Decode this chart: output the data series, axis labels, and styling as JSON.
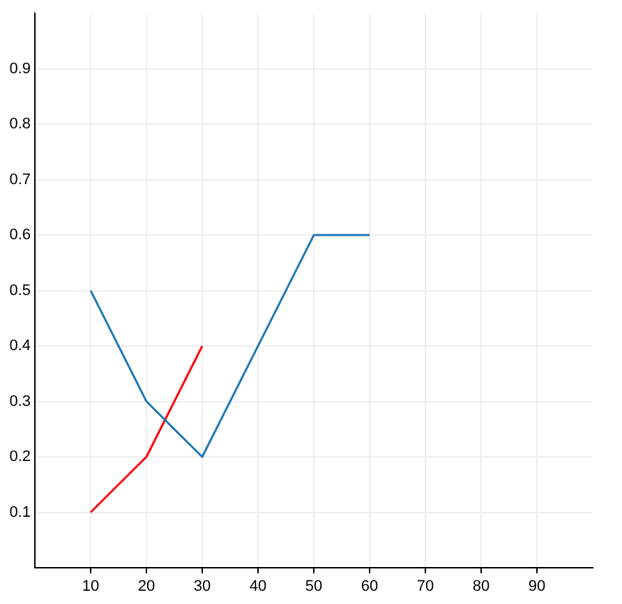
{
  "chart_data": {
    "type": "line",
    "x": [
      10,
      20,
      30,
      40,
      50,
      60
    ],
    "series": [
      {
        "color": "#1f77b4",
        "values": [
          0.5,
          0.3,
          0.2,
          0.4,
          0.6,
          0.6
        ]
      },
      {
        "color": "#ff0000",
        "x": [
          10,
          20,
          30
        ],
        "values": [
          0.1,
          0.2,
          0.4
        ]
      }
    ],
    "xlim": [
      0,
      100
    ],
    "ylim": [
      0,
      1
    ],
    "xticks": [
      10,
      20,
      30,
      40,
      50,
      60,
      70,
      80,
      90
    ],
    "yticks": [
      0.1,
      0.2,
      0.3,
      0.4,
      0.5,
      0.6,
      0.7,
      0.8,
      0.9
    ],
    "grid": true,
    "legend": false,
    "marker": "none",
    "line_style": "solid"
  }
}
